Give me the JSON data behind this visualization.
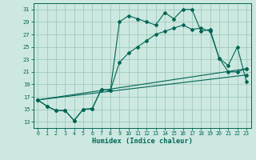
{
  "xlabel": "Humidex (Indice chaleur)",
  "xlim": [
    -0.5,
    23.5
  ],
  "ylim": [
    12.0,
    32.0
  ],
  "yticks": [
    13,
    15,
    17,
    19,
    21,
    23,
    25,
    27,
    29,
    31
  ],
  "xticks": [
    0,
    1,
    2,
    3,
    4,
    5,
    6,
    7,
    8,
    9,
    10,
    11,
    12,
    13,
    14,
    15,
    16,
    17,
    18,
    19,
    20,
    21,
    22,
    23
  ],
  "bg_color": "#cce8e0",
  "grid_color": "#a0c8bc",
  "line_color": "#006655",
  "line1_x": [
    0,
    1,
    2,
    3,
    4,
    5,
    6,
    7,
    8,
    9,
    10,
    11,
    12,
    13,
    14,
    15,
    16,
    17,
    18,
    19,
    20,
    21,
    22,
    23
  ],
  "line1_y": [
    16.5,
    15.5,
    14.8,
    14.8,
    13.2,
    15.0,
    15.1,
    18.2,
    18.0,
    29.0,
    30.0,
    29.5,
    29.0,
    28.5,
    30.5,
    29.5,
    31.0,
    31.0,
    27.5,
    27.8,
    23.2,
    22.0,
    25.0,
    19.5
  ],
  "line2_x": [
    0,
    1,
    2,
    3,
    4,
    5,
    6,
    7,
    8,
    9,
    10,
    11,
    12,
    13,
    14,
    15,
    16,
    17,
    18,
    19,
    20,
    21,
    22,
    23
  ],
  "line2_y": [
    16.5,
    15.5,
    14.8,
    14.8,
    13.2,
    15.0,
    15.1,
    18.2,
    18.0,
    22.5,
    24.0,
    25.0,
    26.0,
    27.0,
    27.5,
    28.0,
    28.5,
    27.8,
    28.0,
    27.5,
    23.2,
    21.0,
    21.0,
    21.5
  ],
  "line3_x": [
    0,
    23
  ],
  "line3_y": [
    16.5,
    21.5
  ],
  "line4_x": [
    0,
    23
  ],
  "line4_y": [
    16.5,
    20.5
  ]
}
